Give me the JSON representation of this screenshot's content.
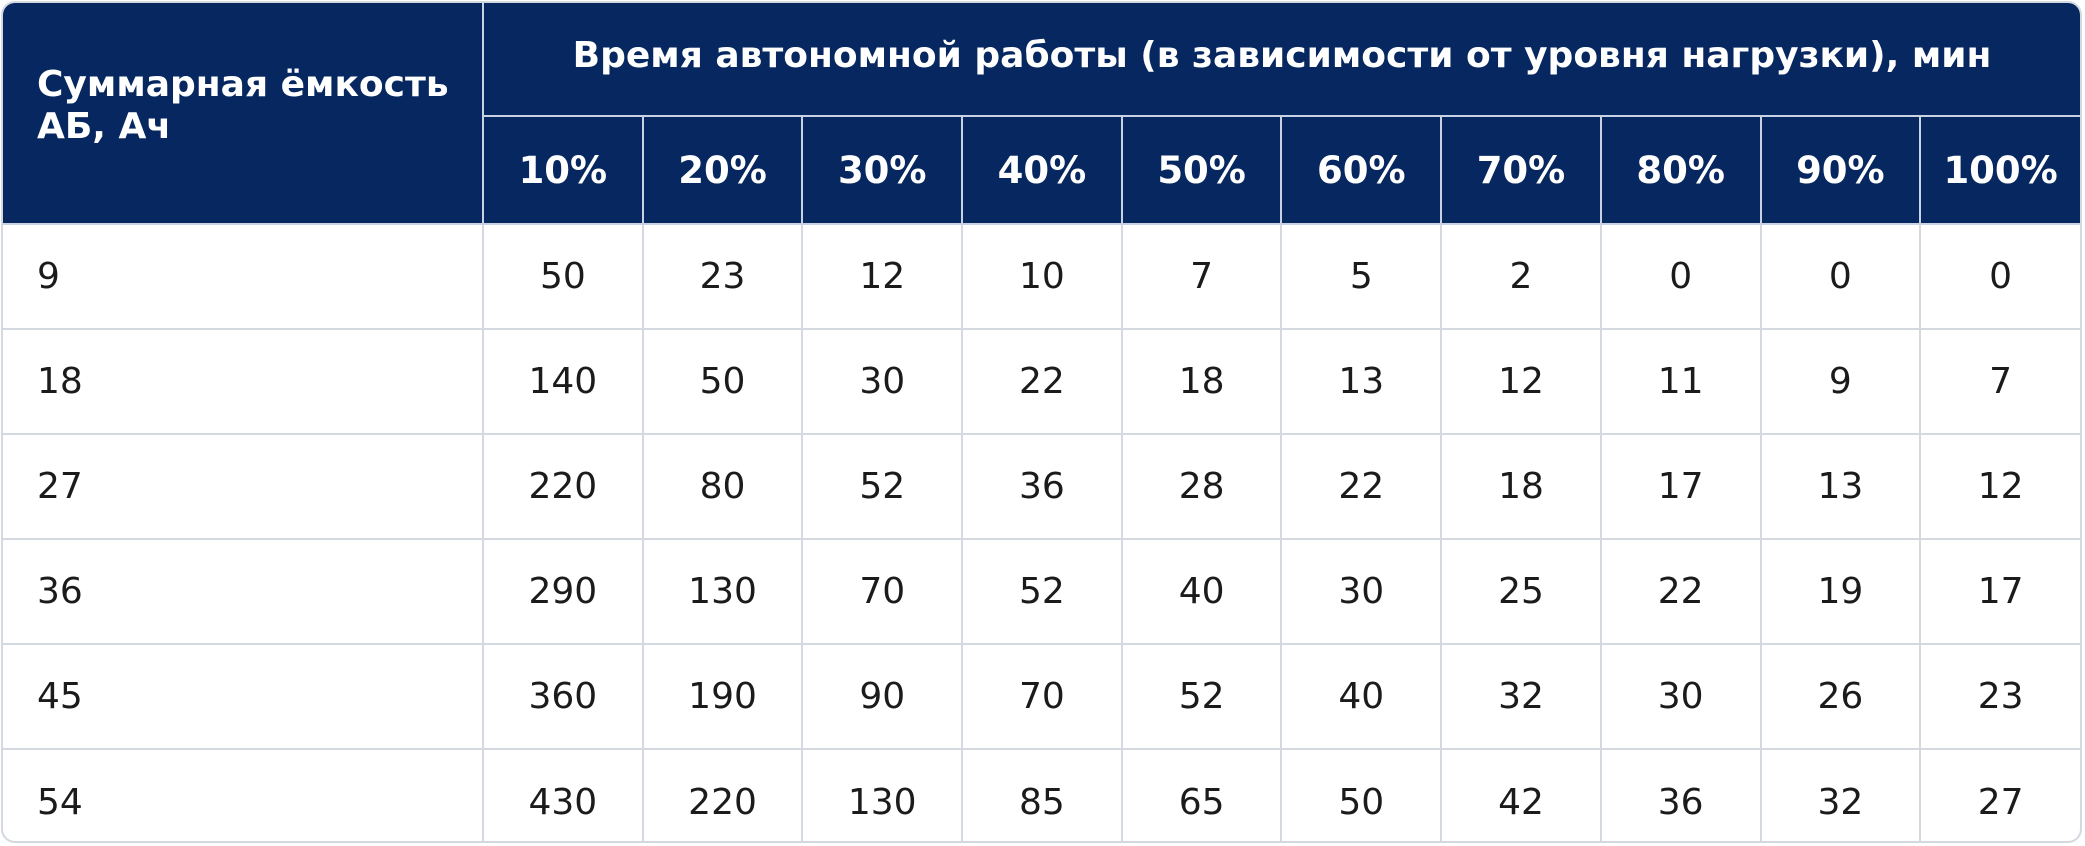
{
  "table": {
    "capacity_header": "Суммарная ёмкость АБ, Ач",
    "group_header": "Время автономной работы (в зависимости от уровня нагрузки), мин",
    "load_levels": [
      "10%",
      "20%",
      "30%",
      "40%",
      "50%",
      "60%",
      "70%",
      "80%",
      "90%",
      "100%"
    ],
    "rows": [
      {
        "capacity": "9",
        "values": [
          "50",
          "23",
          "12",
          "10",
          "7",
          "5",
          "2",
          "0",
          "0",
          "0"
        ]
      },
      {
        "capacity": "18",
        "values": [
          "140",
          "50",
          "30",
          "22",
          "18",
          "13",
          "12",
          "11",
          "9",
          "7"
        ]
      },
      {
        "capacity": "27",
        "values": [
          "220",
          "80",
          "52",
          "36",
          "28",
          "22",
          "18",
          "17",
          "13",
          "12"
        ]
      },
      {
        "capacity": "36",
        "values": [
          "290",
          "130",
          "70",
          "52",
          "40",
          "30",
          "25",
          "22",
          "19",
          "17"
        ]
      },
      {
        "capacity": "45",
        "values": [
          "360",
          "190",
          "90",
          "70",
          "52",
          "40",
          "32",
          "30",
          "26",
          "23"
        ]
      },
      {
        "capacity": "54",
        "values": [
          "430",
          "220",
          "130",
          "85",
          "65",
          "50",
          "42",
          "36",
          "32",
          "27"
        ]
      }
    ]
  },
  "colors": {
    "header_background": "#06275f",
    "header_text": "#ffffff",
    "grid_line": "#d4d8df",
    "body_text": "#1b1b1b"
  }
}
